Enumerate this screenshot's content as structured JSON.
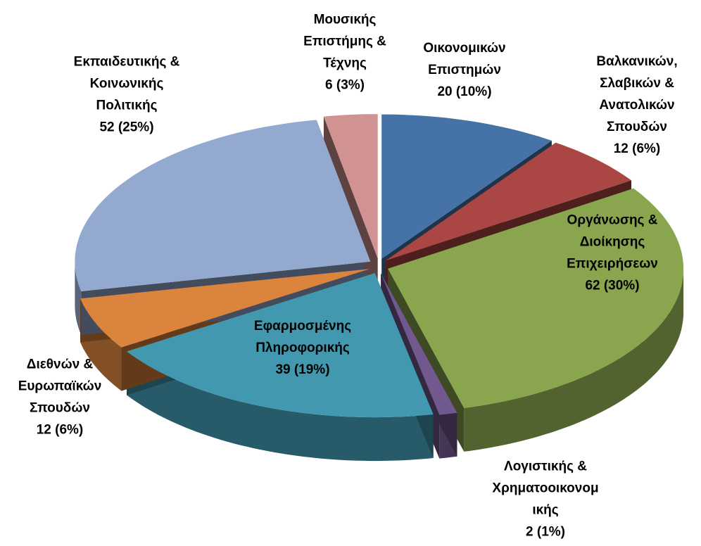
{
  "chart_data": {
    "type": "pie3d",
    "categories": [
      [
        "Οικονομικών",
        "Επιστημών"
      ],
      [
        "Βαλκανικών,",
        "Σλαβικών &",
        "Ανατολικών",
        "Σπουδών"
      ],
      [
        "Οργάνωσης &",
        "Διοίκησης",
        "Επιχειρήσεων"
      ],
      [
        "Λογιστικής &",
        "Χρηματοοικονομ",
        "ικής"
      ],
      [
        "Εφαρμοσμένης",
        "Πληροφορικής"
      ],
      [
        "Διεθνών &",
        "Ευρωπαϊκών",
        "Σπουδών"
      ],
      [
        "Εκπαιδευτικής &",
        "Κοινωνικής",
        "Πολιτικής"
      ],
      [
        "Μουσικής",
        "Επιστήμης &",
        "Τέχνης"
      ]
    ],
    "values": [
      20,
      12,
      62,
      2,
      39,
      12,
      52,
      6
    ],
    "value_labels": [
      "20 (10%)",
      "12 (6%)",
      "62 (30%)",
      "2 (1%)",
      "39 (19%)",
      "12 (6%)",
      "52 (25%)",
      "6 (3%)"
    ],
    "colors": [
      "#4572a7",
      "#aa4643",
      "#89a54e",
      "#71588f",
      "#4198af",
      "#db843d",
      "#93a9cf",
      "#d19392"
    ]
  }
}
